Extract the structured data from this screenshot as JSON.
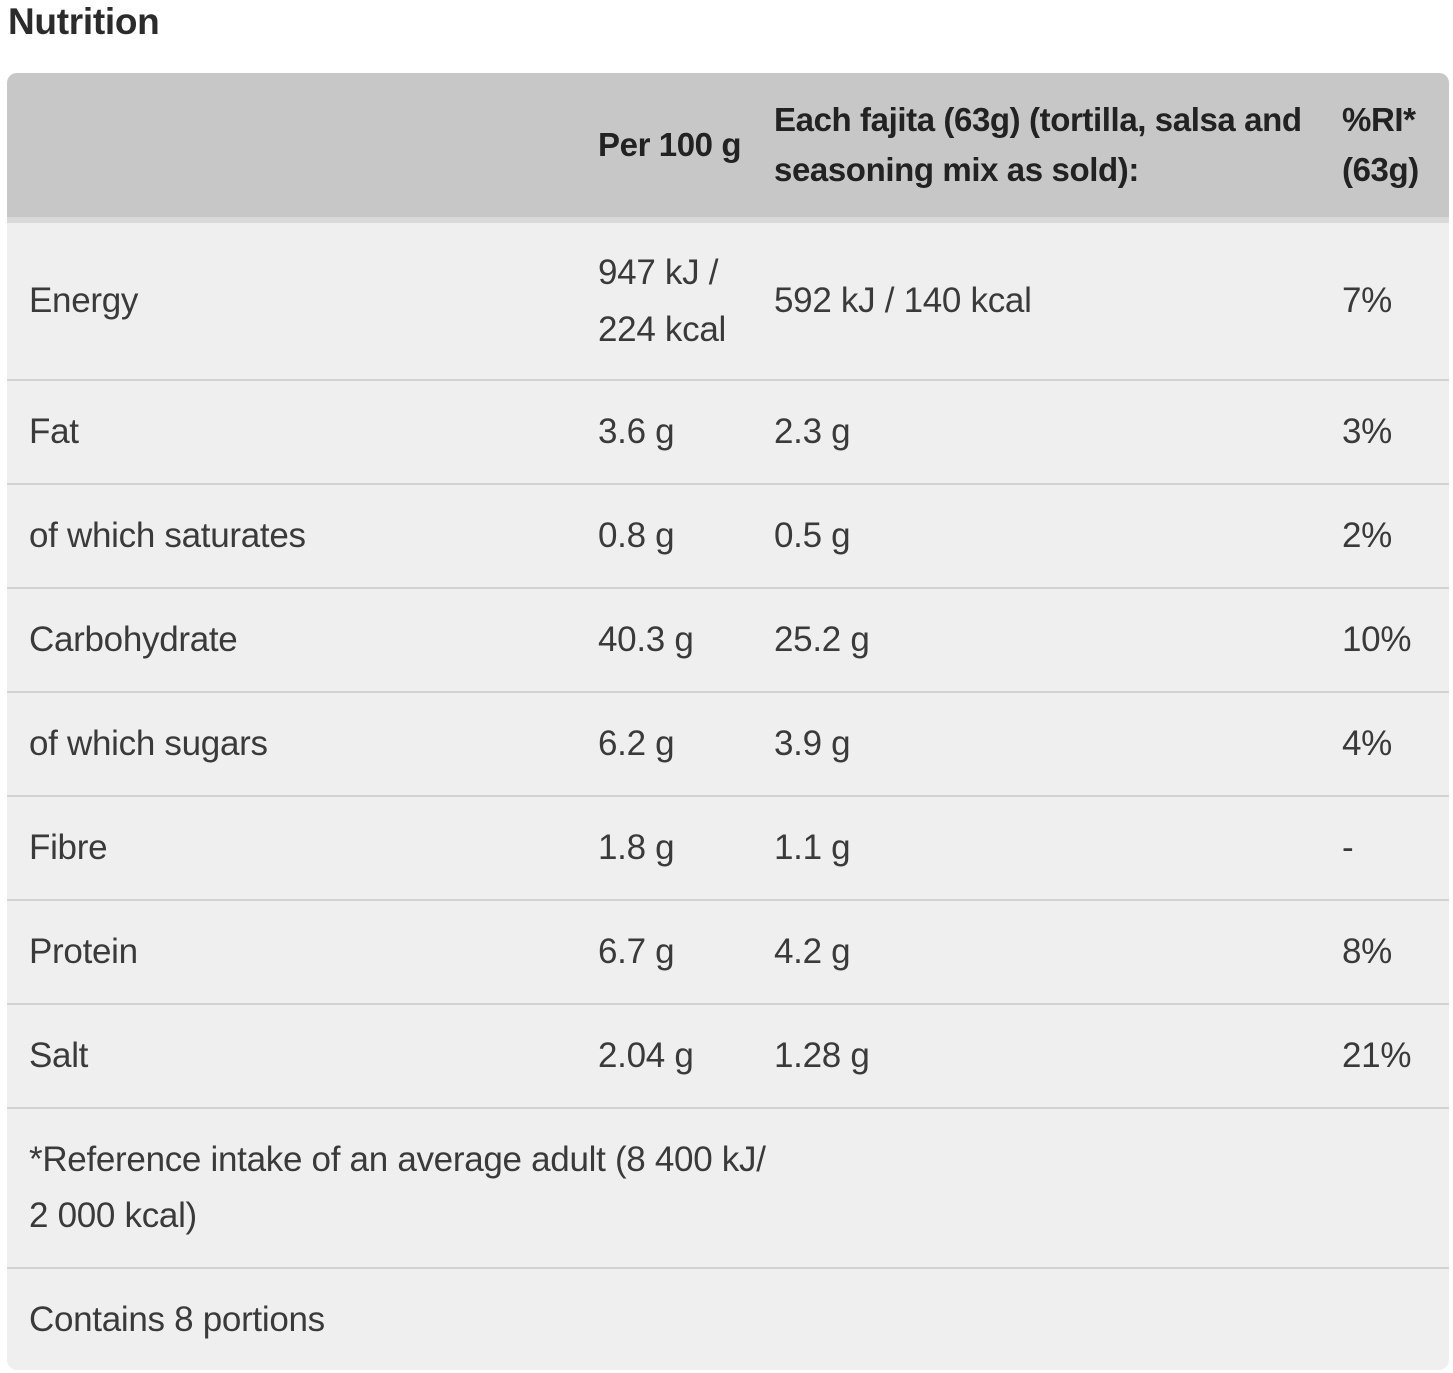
{
  "title": "Nutrition",
  "table": {
    "headers": [
      "",
      "Per 100 g",
      "Each fajita (63g) (tortilla, salsa and seasoning mix as sold):",
      "%RI* (63g)"
    ],
    "rows": [
      {
        "nutrient": "Energy",
        "per100": "947 kJ / 224 kcal",
        "each": "592 kJ / 140 kcal",
        "ri": "7%"
      },
      {
        "nutrient": "Fat",
        "per100": "3.6 g",
        "each": "2.3 g",
        "ri": "3%"
      },
      {
        "nutrient": "of which saturates",
        "per100": "0.8 g",
        "each": "0.5 g",
        "ri": "2%"
      },
      {
        "nutrient": "Carbohydrate",
        "per100": "40.3 g",
        "each": "25.2 g",
        "ri": "10%"
      },
      {
        "nutrient": "of which sugars",
        "per100": "6.2 g",
        "each": "3.9 g",
        "ri": "4%"
      },
      {
        "nutrient": "Fibre",
        "per100": "1.8 g",
        "each": "1.1 g",
        "ri": "-"
      },
      {
        "nutrient": "Protein",
        "per100": "6.7 g",
        "each": "4.2 g",
        "ri": "8%"
      },
      {
        "nutrient": "Salt",
        "per100": "2.04 g",
        "each": "1.28 g",
        "ri": "21%"
      }
    ],
    "note": "*Reference intake of an average adult (8 400 kJ/ 2 000 kcal)",
    "portions": "Contains 8 portions"
  }
}
